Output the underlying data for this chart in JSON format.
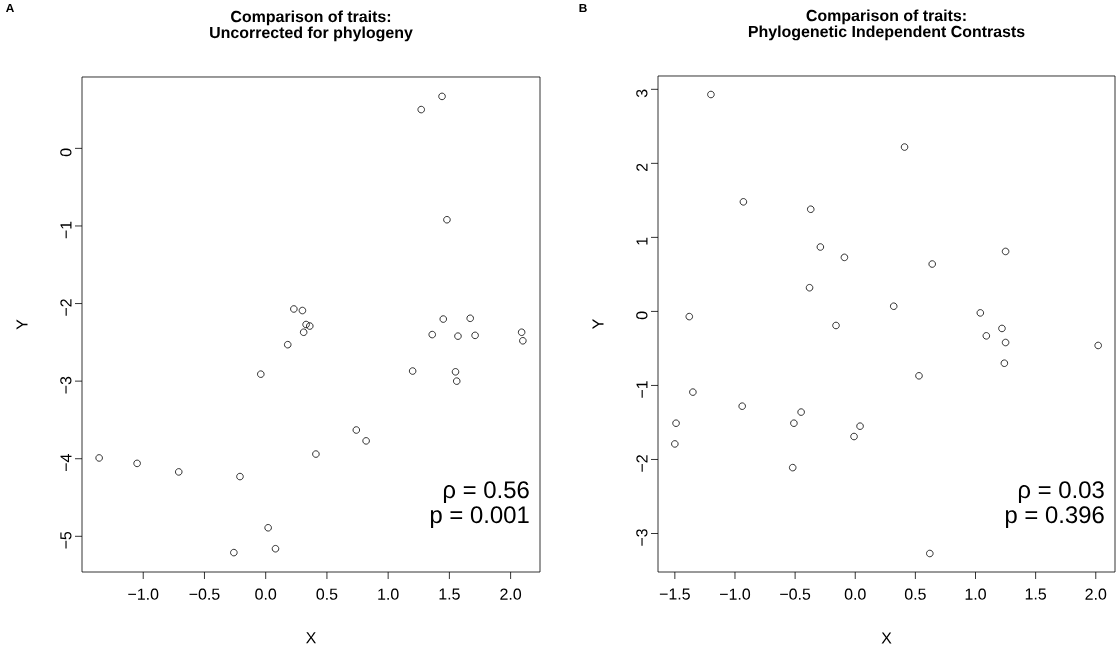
{
  "chart_data": [
    {
      "type": "scatter",
      "title": "Comparison of traits:",
      "subtitle": "Uncorrected for phylogeny",
      "xlabel": "X",
      "ylabel": "Y",
      "x": [
        1.27,
        1.44,
        1.48,
        0.23,
        0.3,
        0.33,
        0.36,
        0.31,
        0.18,
        -0.04,
        1.45,
        1.67,
        1.36,
        1.57,
        1.71,
        2.09,
        2.1,
        1.2,
        1.55,
        1.56,
        0.74,
        0.82,
        0.41,
        -1.36,
        -1.05,
        -0.71,
        -0.21,
        0.02,
        0.08,
        -0.26
      ],
      "values": [
        0.5,
        0.67,
        -0.92,
        -2.07,
        -2.09,
        -2.27,
        -2.29,
        -2.37,
        -2.53,
        -2.91,
        -2.2,
        -2.19,
        -2.4,
        -2.42,
        -2.41,
        -2.37,
        -2.48,
        -2.87,
        -2.88,
        -3.0,
        -3.63,
        -3.77,
        -3.94,
        -3.99,
        -4.06,
        -4.17,
        -4.23,
        -4.89,
        -5.16,
        -5.21
      ],
      "color": "#000000",
      "marker": "circle",
      "xlim": [
        -1.5,
        2.24
      ],
      "ylim": [
        -5.46,
        0.92
      ],
      "xticks": [
        {
          "value": -1.0,
          "label": "−1.0"
        },
        {
          "value": -0.5,
          "label": "−0.5"
        },
        {
          "value": 0.0,
          "label": "0.0"
        },
        {
          "value": 0.5,
          "label": "0.5"
        },
        {
          "value": 1.0,
          "label": "1.0"
        },
        {
          "value": 1.5,
          "label": "1.5"
        },
        {
          "value": 2.0,
          "label": "2.0"
        }
      ],
      "yticks": [
        {
          "value": -5,
          "label": "−5"
        },
        {
          "value": -4,
          "label": "−4"
        },
        {
          "value": -3,
          "label": "−3"
        },
        {
          "value": -2,
          "label": "−2"
        },
        {
          "value": -1,
          "label": "−1"
        },
        {
          "value": 0,
          "label": "0"
        }
      ],
      "annotations": [
        "A",
        "ρ = 0.56",
        "p = 0.001"
      ]
    },
    {
      "type": "scatter",
      "title": "Comparison of traits:",
      "subtitle": "Phylogenetic Independent Contrasts",
      "xlabel": "X",
      "ylabel": "Y",
      "x": [
        -1.2,
        0.41,
        -0.93,
        -0.37,
        -0.29,
        -0.09,
        0.64,
        1.25,
        -0.38,
        -1.38,
        -0.16,
        0.32,
        1.04,
        1.22,
        1.09,
        1.25,
        2.02,
        1.24,
        0.53,
        -1.35,
        -0.94,
        -0.45,
        -1.49,
        -0.51,
        0.04,
        -0.01,
        -1.5,
        -0.52,
        0.62
      ],
      "values": [
        2.93,
        2.22,
        1.48,
        1.38,
        0.87,
        0.73,
        0.64,
        0.81,
        0.32,
        -0.07,
        -0.19,
        0.07,
        -0.02,
        -0.23,
        -0.33,
        -0.42,
        -0.46,
        -0.7,
        -0.87,
        -1.09,
        -1.28,
        -1.36,
        -1.51,
        -1.51,
        -1.55,
        -1.69,
        -1.79,
        -2.11,
        -3.27
      ],
      "color": "#000000",
      "marker": "circle",
      "xlim": [
        -1.64,
        2.16
      ],
      "ylim": [
        -3.52,
        3.18
      ],
      "xticks": [
        {
          "value": -1.5,
          "label": "−1.5"
        },
        {
          "value": -1.0,
          "label": "−1.0"
        },
        {
          "value": -0.5,
          "label": "−0.5"
        },
        {
          "value": 0.0,
          "label": "0.0"
        },
        {
          "value": 0.5,
          "label": "0.5"
        },
        {
          "value": 1.0,
          "label": "1.0"
        },
        {
          "value": 1.5,
          "label": "1.5"
        },
        {
          "value": 2.0,
          "label": "2.0"
        }
      ],
      "yticks": [
        {
          "value": -3,
          "label": "−3"
        },
        {
          "value": -2,
          "label": "−2"
        },
        {
          "value": -1,
          "label": "−1"
        },
        {
          "value": 0,
          "label": "0"
        },
        {
          "value": 1,
          "label": "1"
        },
        {
          "value": 2,
          "label": "2"
        },
        {
          "value": 3,
          "label": "3"
        }
      ],
      "annotations": [
        "B",
        "ρ = 0.03",
        "p = 0.396"
      ]
    }
  ]
}
